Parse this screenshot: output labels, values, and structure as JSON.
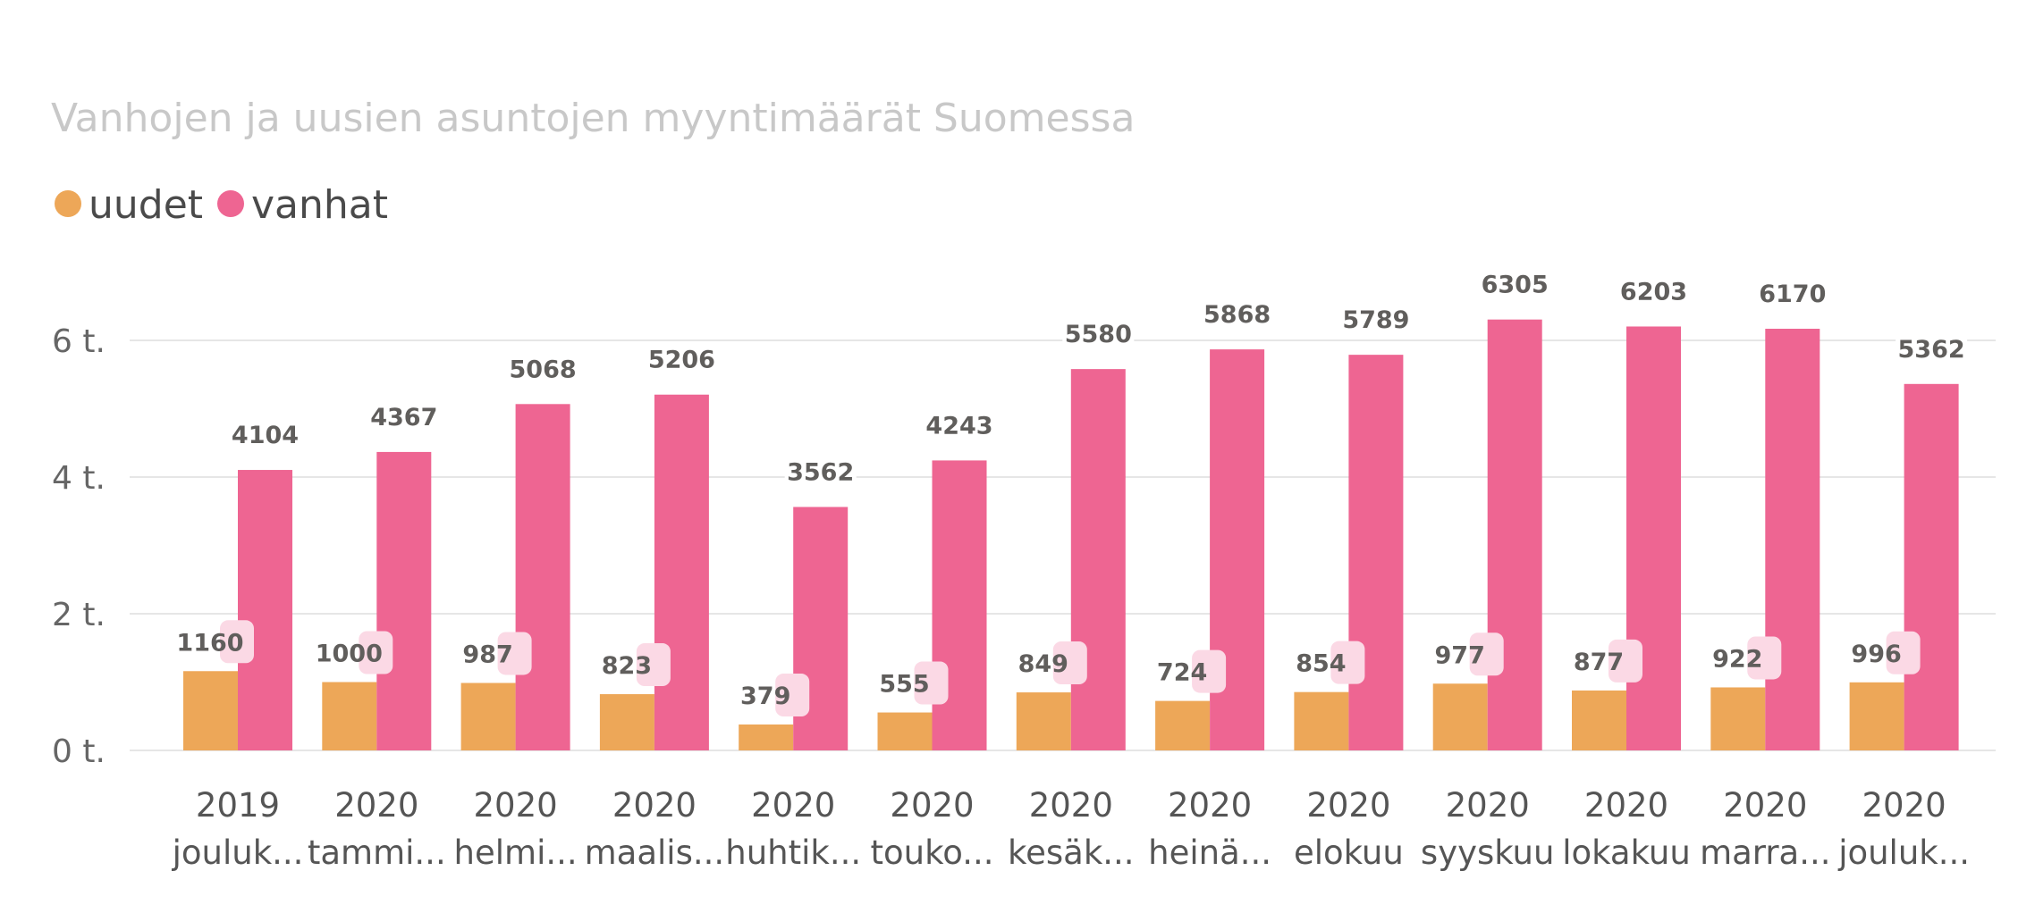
{
  "chart_data": {
    "type": "bar",
    "title": "Vanhojen ja uusien asuntojen myyntimäärät Suomessa",
    "legend_position": "top-left",
    "grid": true,
    "ylim": [
      0,
      7000
    ],
    "y_ticks": [
      {
        "value": 0,
        "label": "0 t."
      },
      {
        "value": 2000,
        "label": "2 t."
      },
      {
        "value": 4000,
        "label": "4 t."
      },
      {
        "value": 6000,
        "label": "6 t."
      }
    ],
    "categories": [
      [
        "2019",
        "jouluk..."
      ],
      [
        "2020",
        "tammi..."
      ],
      [
        "2020",
        "helmi..."
      ],
      [
        "2020",
        "maalis..."
      ],
      [
        "2020",
        "huhtik..."
      ],
      [
        "2020",
        "touko..."
      ],
      [
        "2020",
        "kesäk..."
      ],
      [
        "2020",
        "heinä..."
      ],
      [
        "2020",
        "elokuu"
      ],
      [
        "2020",
        "syyskuu"
      ],
      [
        "2020",
        "lokakuu"
      ],
      [
        "2020",
        "marra..."
      ],
      [
        "2020",
        "jouluk..."
      ]
    ],
    "series": [
      {
        "name": "uudet",
        "color": "#eda758",
        "values": [
          1160,
          1000,
          987,
          823,
          379,
          555,
          849,
          724,
          854,
          977,
          877,
          922,
          996
        ]
      },
      {
        "name": "vanhat",
        "color": "#ee6592",
        "values": [
          4104,
          4367,
          5068,
          5206,
          3562,
          4243,
          5580,
          5868,
          5789,
          6305,
          6203,
          6170,
          5362
        ]
      }
    ]
  }
}
